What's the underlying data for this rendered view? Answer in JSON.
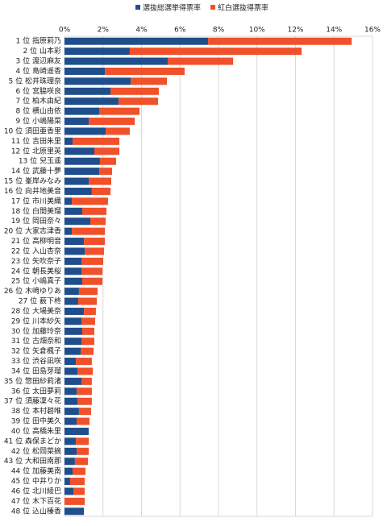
{
  "chart_data": {
    "type": "stacked-bar-horizontal",
    "categories": [
      "1 位 指原莉乃",
      "2 位 山本彩",
      "3 位 渡辺麻友",
      "4 位 島崎遥香",
      "5 位 松井珠理奈",
      "6 位 宮脇咲良",
      "7 位 柏木由紀",
      "8 位 横山由依",
      "9 位 小嶋陽菜",
      "10 位 須田亜香里",
      "11 位 吉田朱里",
      "12 位 北原里英",
      "13 位 兒玉遥",
      "14 位 武藤十夢",
      "15 位 峯岸みなみ",
      "16 位 向井地美音",
      "17 位 市川美織",
      "18 位 白間美瑠",
      "19 位 岡田奈々",
      "20 位 大家志津香",
      "21 位 高柳明音",
      "22 位 入山杏奈",
      "23 位 矢吹奈子",
      "24 位 朝長美桜",
      "25 位 小嶋真子",
      "26 位 木﨑ゆりあ",
      "27 位 薮下柊",
      "28 位 大場美奈",
      "29 位 川本紗矢",
      "30 位 加藤玲奈",
      "31 位 古畑奈和",
      "32 位 矢倉楓子",
      "33 位 渋谷凪咲",
      "34 位 田島芽瑠",
      "35 位 惣田紗莉渚",
      "36 位 太田夢莉",
      "37 位 須藤凜々花",
      "38 位 本村碧唯",
      "39 位 田中美久",
      "40 位 高橋朱里",
      "41 位 森保まどか",
      "42 位 松岡菜摘",
      "43 位 大和田南那",
      "44 位 加藤美南",
      "45 位 中井りか",
      "46 位 北川綾巴",
      "47 位 木下百花",
      "48 位 込山榛香"
    ],
    "series": [
      {
        "name": "選抜総選挙得票率",
        "color": "#1f4e8c",
        "values": [
          7.46,
          3.39,
          5.36,
          2.1,
          3.44,
          2.39,
          2.81,
          1.8,
          1.26,
          2.14,
          0.42,
          1.55,
          1.84,
          1.8,
          1.26,
          1.42,
          0.38,
          0.92,
          1.34,
          0.38,
          1.01,
          1.05,
          0.88,
          0.88,
          0.92,
          0.75,
          0.71,
          1.01,
          0.88,
          0.92,
          0.88,
          0.84,
          0.59,
          0.67,
          0.88,
          0.63,
          0.67,
          0.75,
          0.63,
          1.26,
          0.59,
          0.63,
          0.54,
          0.42,
          0.29,
          0.46,
          0,
          1.01
        ]
      },
      {
        "name": "紅白選抜得票率",
        "color": "#f0502a",
        "values": [
          7.46,
          8.93,
          3.4,
          4.14,
          1.88,
          2.51,
          2.05,
          2.1,
          2.39,
          1.25,
          2.43,
          1.3,
          0.84,
          0.67,
          1.17,
          0.97,
          1.88,
          1.26,
          0.8,
          1.72,
          1.09,
          1.0,
          1.13,
          1.09,
          1.05,
          0.97,
          0.97,
          0.62,
          0.71,
          0.63,
          0.67,
          0.67,
          0.83,
          0.8,
          0.54,
          0.79,
          0.75,
          0.63,
          0.67,
          0,
          0.67,
          0.63,
          0.68,
          0.67,
          0.76,
          0.59,
          1.05,
          0
        ]
      }
    ],
    "xlim": [
      0,
      16
    ],
    "xticks": [
      {
        "value": 0,
        "label": "0%"
      },
      {
        "value": 2,
        "label": "2%"
      },
      {
        "value": 4,
        "label": "4%"
      },
      {
        "value": 6,
        "label": "6%"
      },
      {
        "value": 8,
        "label": "8%"
      },
      {
        "value": 10,
        "label": "10%"
      },
      {
        "value": 12,
        "label": "12%"
      },
      {
        "value": 14,
        "label": "14%"
      },
      {
        "value": 16,
        "label": "16%"
      }
    ],
    "grid": true,
    "legend": "top"
  }
}
